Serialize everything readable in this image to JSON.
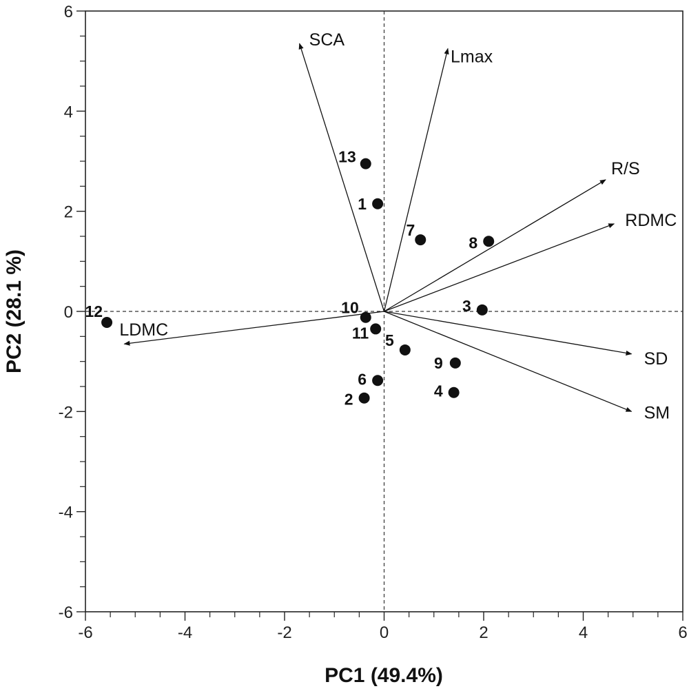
{
  "chart_data": {
    "type": "scatter",
    "subtype": "pca-biplot",
    "xlabel": "PC1 (49.4%)",
    "ylabel": "PC2  (28.1 %)",
    "xlim": [
      -6,
      6
    ],
    "ylim": [
      -6,
      6
    ],
    "xticks": [
      -6,
      -4,
      -2,
      0,
      2,
      4,
      6
    ],
    "yticks": [
      -6,
      -4,
      -2,
      0,
      2,
      4,
      6
    ],
    "tick_labels": [
      "-6",
      "-4",
      "-2",
      "0",
      "2",
      "4",
      "6"
    ],
    "minor_tick_step": 0.5,
    "zero_lines": "dashed",
    "points": [
      {
        "label": "1",
        "x": -0.13,
        "y": 2.15
      },
      {
        "label": "2",
        "x": -0.4,
        "y": -1.73
      },
      {
        "label": "3",
        "x": 1.97,
        "y": 0.03
      },
      {
        "label": "4",
        "x": 1.4,
        "y": -1.62
      },
      {
        "label": "5",
        "x": 0.42,
        "y": -0.77
      },
      {
        "label": "6",
        "x": -0.13,
        "y": -1.38
      },
      {
        "label": "7",
        "x": 0.73,
        "y": 1.43
      },
      {
        "label": "8",
        "x": 2.1,
        "y": 1.4
      },
      {
        "label": "9",
        "x": 1.43,
        "y": -1.03
      },
      {
        "label": "10",
        "x": -0.37,
        "y": -0.12
      },
      {
        "label": "11",
        "x": -0.17,
        "y": -0.35
      },
      {
        "label": "12",
        "x": -5.57,
        "y": -0.22
      },
      {
        "label": "13",
        "x": -0.37,
        "y": 2.95
      }
    ],
    "loadings": [
      {
        "label": "SCA",
        "x": -1.7,
        "y": 5.35
      },
      {
        "label": "Lmax",
        "x": 1.28,
        "y": 5.25
      },
      {
        "label": "R/S",
        "x": 4.45,
        "y": 2.63
      },
      {
        "label": "RDMC",
        "x": 4.62,
        "y": 1.75
      },
      {
        "label": "SD",
        "x": 4.97,
        "y": -0.85
      },
      {
        "label": "SM",
        "x": 4.97,
        "y": -2.0
      },
      {
        "label": "LDMC",
        "x": -5.22,
        "y": -0.65
      }
    ]
  }
}
